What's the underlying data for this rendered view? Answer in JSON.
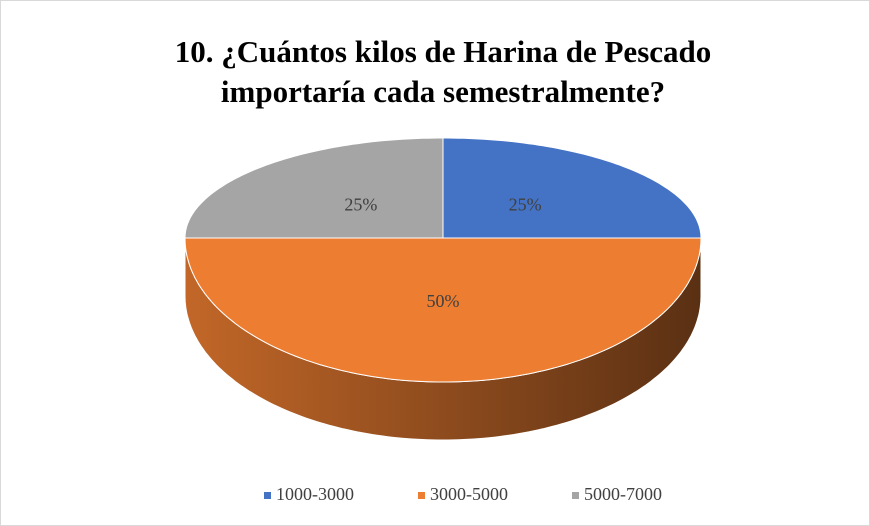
{
  "chart_data": {
    "type": "pie3d",
    "title": "10. ¿Cuántos kilos de Harina de Pescado importaría cada semestralmente?",
    "categories": [
      "1000-3000",
      "3000-5000",
      "5000-7000"
    ],
    "values": [
      25,
      50,
      25
    ],
    "value_labels": [
      "25%",
      "50%",
      "25%"
    ],
    "colors": [
      "#4472c4",
      "#ed7d31",
      "#a5a5a5"
    ],
    "legend": "bottom"
  }
}
